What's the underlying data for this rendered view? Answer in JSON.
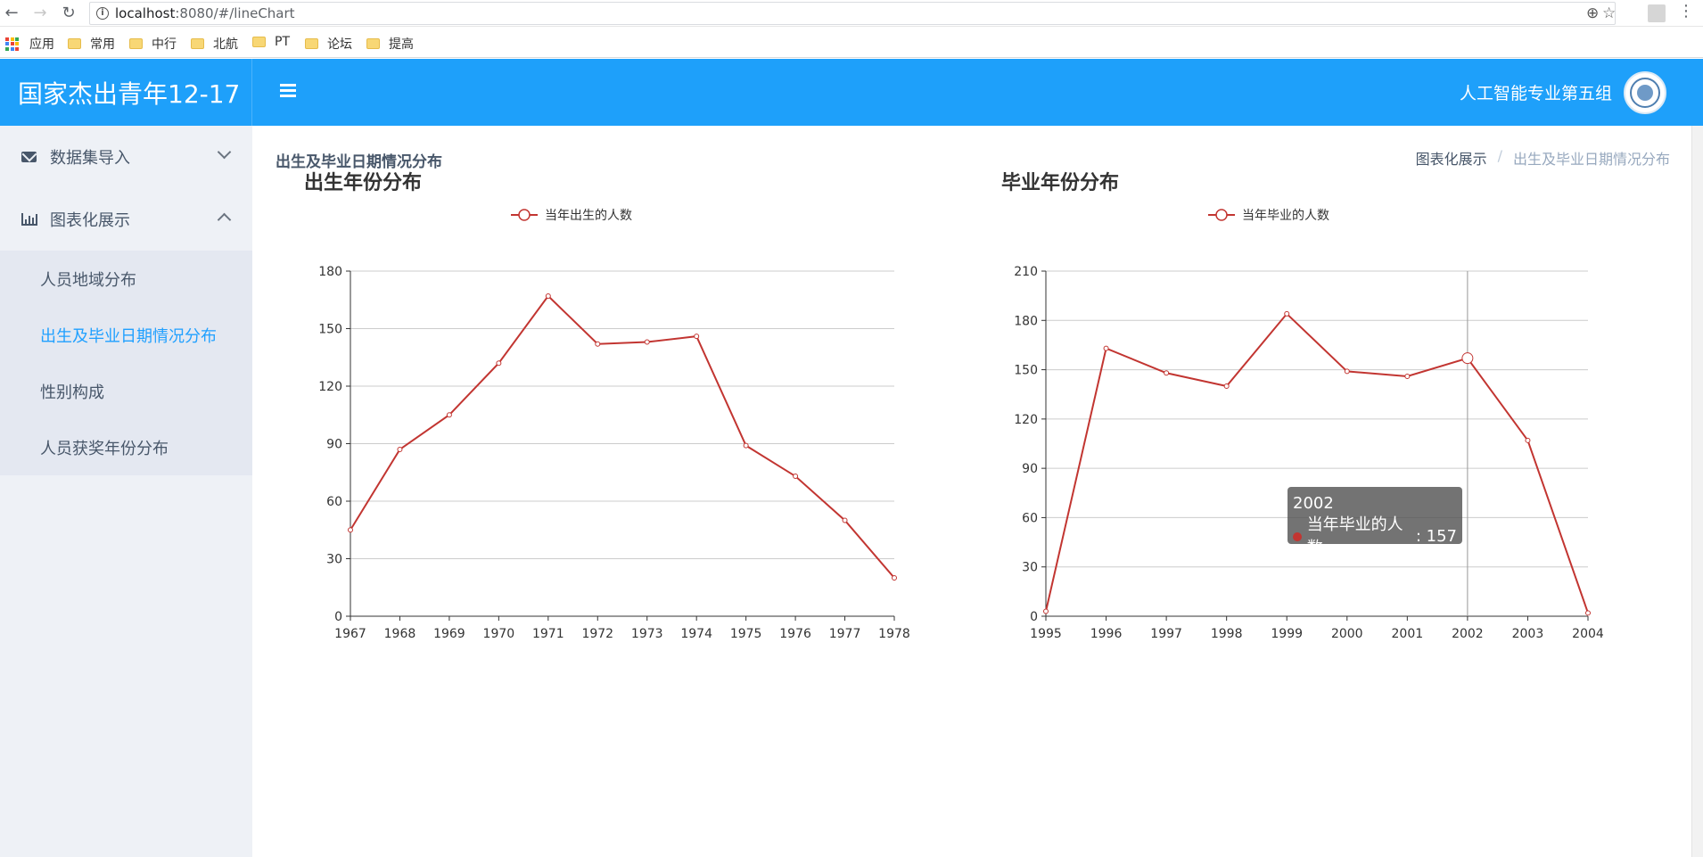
{
  "browser": {
    "url_host": "localhost",
    "url_path": ":8080/#/lineChart",
    "bookmarks": [
      "应用",
      "常用",
      "中行",
      "北航",
      "PT",
      "论坛",
      "提高"
    ]
  },
  "header": {
    "title": "国家杰出青年12-17",
    "user": "人工智能专业第五组"
  },
  "sidebar": {
    "groups": [
      {
        "label": "数据集导入",
        "icon": "envelope-icon",
        "expanded": false
      },
      {
        "label": "图表化展示",
        "icon": "bar-chart-icon",
        "expanded": true
      }
    ],
    "items": [
      {
        "label": "人员地域分布",
        "active": false
      },
      {
        "label": "出生及毕业日期情况分布",
        "active": true
      },
      {
        "label": "性别构成",
        "active": false
      },
      {
        "label": "人员获奖年份分布",
        "active": false
      }
    ]
  },
  "main": {
    "page_title": "出生及毕业日期情况分布",
    "breadcrumb": [
      "图表化展示",
      "/",
      "出生及毕业日期情况分布"
    ]
  },
  "colors": {
    "brand": "#1ea0fa",
    "active": "#20a0ff",
    "series": "#c23531"
  },
  "chart_data": [
    {
      "type": "line",
      "title": "出生年份分布",
      "x": [
        "1967",
        "1968",
        "1969",
        "1970",
        "1971",
        "1972",
        "1973",
        "1974",
        "1975",
        "1976",
        "1977",
        "1978"
      ],
      "series": [
        {
          "name": "当年出生的人数",
          "values": [
            45,
            87,
            105,
            132,
            167,
            142,
            143,
            146,
            89,
            73,
            50,
            20
          ]
        }
      ],
      "ylim": [
        0,
        180
      ],
      "yticks": [
        0,
        30,
        60,
        90,
        120,
        150,
        180
      ],
      "grid": true,
      "legend": "top-center"
    },
    {
      "type": "line",
      "title": "毕业年份分布",
      "x": [
        "1995",
        "1996",
        "1997",
        "1998",
        "1999",
        "2000",
        "2001",
        "2002",
        "2003",
        "2004"
      ],
      "series": [
        {
          "name": "当年毕业的人数",
          "values": [
            3,
            163,
            148,
            140,
            184,
            149,
            146,
            157,
            107,
            2
          ]
        }
      ],
      "ylim": [
        0,
        210
      ],
      "yticks": [
        0,
        30,
        60,
        90,
        120,
        150,
        180,
        210
      ],
      "grid": true,
      "legend": "top-center",
      "tooltip": {
        "x": "2002",
        "label": "当年毕业的人数",
        "value": "157"
      }
    }
  ]
}
